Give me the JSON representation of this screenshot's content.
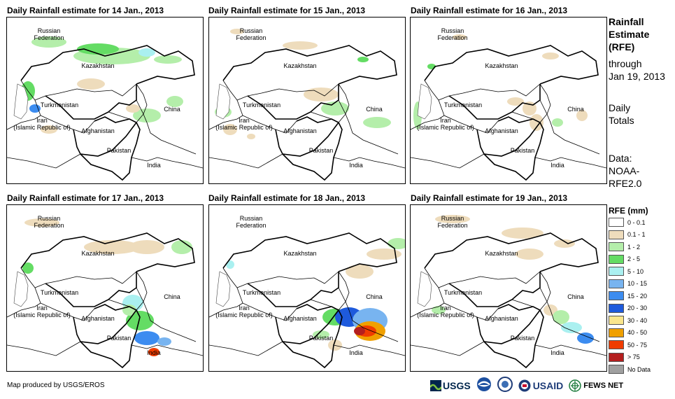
{
  "panels": [
    {
      "title": "Daily Rainfall estimate for 14 Jan., 2013"
    },
    {
      "title": "Daily Rainfall estimate for 15 Jan., 2013"
    },
    {
      "title": "Daily Rainfall estimate for 16 Jan., 2013"
    },
    {
      "title": "Daily Rainfall estimate for 17 Jan., 2013"
    },
    {
      "title": "Daily Rainfall estimate for 18 Jan., 2013"
    },
    {
      "title": "Daily Rainfall estimate for 19 Jan., 2013"
    }
  ],
  "map_labels": {
    "russia_1": "Russian",
    "russia_2": "Federation",
    "kazakhstan": "Kazakhstan",
    "turkmenistan": "Turkmenistan",
    "iran_1": "Iran",
    "iran_2": "(Islamic Republic of)",
    "afghanistan": "Afghanistan",
    "pakistan": "Pakistan",
    "china": "China",
    "india": "India"
  },
  "sidebar": {
    "line1": "Rainfall",
    "line2": "Estimate",
    "line3": "(RFE)",
    "line4": "through",
    "line5": "Jan 19, 2013",
    "line6": "Daily",
    "line7": "Totals",
    "line8": "Data:",
    "line9": "NOAA-",
    "line10": "RFE2.0"
  },
  "legend": {
    "title": "RFE (mm)",
    "items": [
      {
        "label": "0 - 0.1",
        "color": "#ffffff"
      },
      {
        "label": "0.1 - 1",
        "color": "#eedcbc"
      },
      {
        "label": "1 - 2",
        "color": "#b4eeaa"
      },
      {
        "label": "2 - 5",
        "color": "#64dc64"
      },
      {
        "label": "5 - 10",
        "color": "#aaf0f0"
      },
      {
        "label": "10 - 15",
        "color": "#78b4f0"
      },
      {
        "label": "15 - 20",
        "color": "#3c8cf0"
      },
      {
        "label": "20 - 30",
        "color": "#1e5adc"
      },
      {
        "label": "30 - 40",
        "color": "#fae68c"
      },
      {
        "label": "40 - 50",
        "color": "#f0a000"
      },
      {
        "label": "50 - 75",
        "color": "#f03c00"
      },
      {
        "label": "> 75",
        "color": "#b41e1e"
      },
      {
        "label": "No Data",
        "color": "#a0a0a0"
      }
    ]
  },
  "credit": "Map produced by USGS/EROS",
  "logos": {
    "usgs": "USGS",
    "usaid": "USAID",
    "fewsnet": "FEWS NET"
  }
}
